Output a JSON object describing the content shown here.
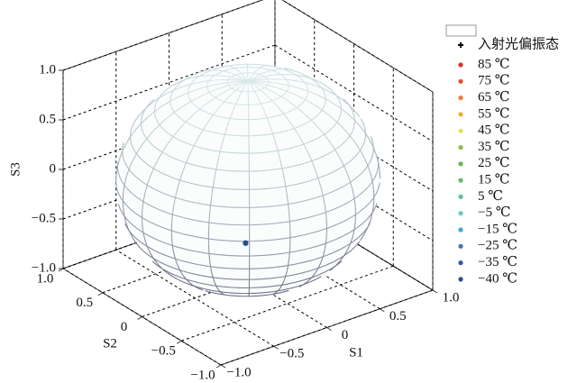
{
  "chart_data": {
    "type": "scatter3d",
    "xlabel": "S1",
    "ylabel": "S2",
    "zlabel": "S3",
    "xlim": [
      -1,
      1
    ],
    "ylim": [
      -1,
      1
    ],
    "zlim": [
      -1,
      1
    ],
    "xticks": [
      {
        "value": -1,
        "label": "−1.0"
      },
      {
        "value": -0.5,
        "label": "−0.5"
      },
      0,
      0.5,
      {
        "value": 1,
        "label": "1.0"
      }
    ],
    "yticks": [
      {
        "value": -1,
        "label": "−1.0"
      },
      {
        "value": -0.5,
        "label": "−0.5"
      },
      0,
      0.5,
      {
        "value": 1,
        "label": "1.0"
      }
    ],
    "zticks": [
      {
        "value": -1,
        "label": "−1.0"
      },
      {
        "value": -0.5,
        "label": "−0.5"
      },
      0,
      0.5,
      {
        "value": 1,
        "label": "1.0"
      }
    ],
    "grid": true,
    "series": [
      {
        "name": "入射光偏振态",
        "marker": "plus",
        "color": "#000000",
        "x": [
          -0.61
        ],
        "y": [
          -0.79
        ],
        "z": [
          -0.02
        ]
      },
      {
        "name": "85 ℃",
        "color": "#d62f27",
        "x": [
          -0.61
        ],
        "y": [
          -0.79
        ],
        "z": [
          -0.02
        ]
      },
      {
        "name": "75 ℃",
        "color": "#e2512f",
        "x": [
          -0.61
        ],
        "y": [
          -0.79
        ],
        "z": [
          -0.02
        ]
      },
      {
        "name": "65 ℃",
        "color": "#f07c3a",
        "x": [
          -0.61
        ],
        "y": [
          -0.79
        ],
        "z": [
          -0.02
        ]
      },
      {
        "name": "55 ℃",
        "color": "#e8b031",
        "x": [
          -0.61
        ],
        "y": [
          -0.79
        ],
        "z": [
          -0.02
        ]
      },
      {
        "name": "45 ℃",
        "color": "#e3e35a",
        "x": [
          -0.61
        ],
        "y": [
          -0.79
        ],
        "z": [
          -0.02
        ]
      },
      {
        "name": "35 ℃",
        "color": "#8cc24a",
        "x": [
          -0.61
        ],
        "y": [
          -0.79
        ],
        "z": [
          -0.02
        ]
      },
      {
        "name": "25 ℃",
        "color": "#66b54c",
        "x": [
          -0.61
        ],
        "y": [
          -0.79
        ],
        "z": [
          -0.02
        ]
      },
      {
        "name": "15 ℃",
        "color": "#5fba6c",
        "x": [
          -0.61
        ],
        "y": [
          -0.79
        ],
        "z": [
          -0.02
        ]
      },
      {
        "name": "5 ℃",
        "color": "#5ec1a0",
        "x": [
          -0.61
        ],
        "y": [
          -0.79
        ],
        "z": [
          -0.02
        ]
      },
      {
        "name": "−5 ℃",
        "color": "#66c8c8",
        "x": [
          -0.61
        ],
        "y": [
          -0.79
        ],
        "z": [
          -0.02
        ]
      },
      {
        "name": "−15 ℃",
        "color": "#3ea7d6",
        "x": [
          -0.61
        ],
        "y": [
          -0.79
        ],
        "z": [
          -0.02
        ]
      },
      {
        "name": "−25 ℃",
        "color": "#3a78b8",
        "x": [
          -0.61
        ],
        "y": [
          -0.79
        ],
        "z": [
          -0.02
        ]
      },
      {
        "name": "−35 ℃",
        "color": "#345a9e",
        "x": [
          -0.61
        ],
        "y": [
          -0.79
        ],
        "z": [
          -0.02
        ]
      },
      {
        "name": "−40 ℃",
        "color": "#2b4e8e",
        "x": [
          -0.61
        ],
        "y": [
          -0.79
        ],
        "z": [
          -0.02
        ]
      }
    ]
  }
}
